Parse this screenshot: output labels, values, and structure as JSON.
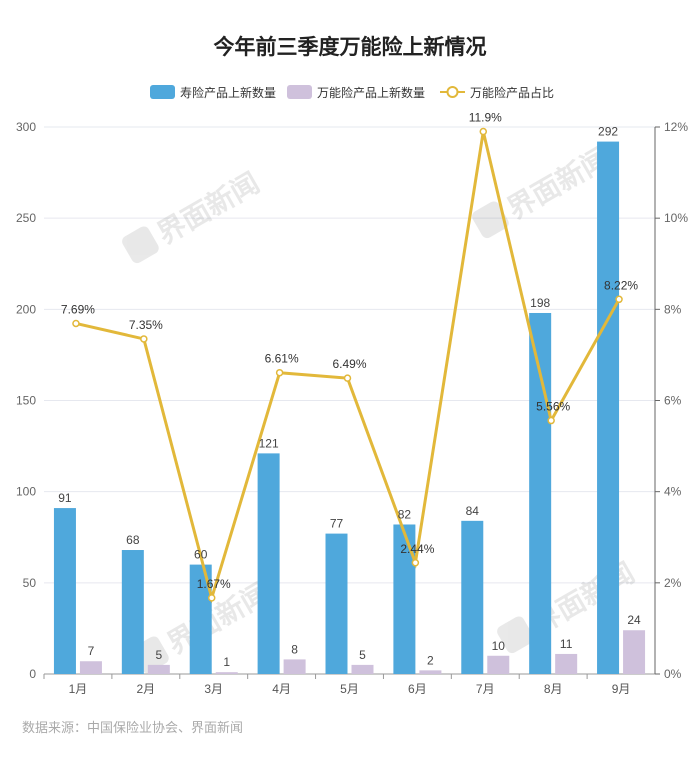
{
  "chart_data": {
    "type": "bar",
    "title": "今年前三季度万能险上新情况",
    "categories": [
      "1月",
      "2月",
      "3月",
      "4月",
      "5月",
      "6月",
      "7月",
      "8月",
      "9月"
    ],
    "series": [
      {
        "name": "寿险产品上新数量",
        "type": "bar",
        "axis": "left",
        "color": "#4fa8dc",
        "values": [
          91,
          68,
          60,
          121,
          77,
          82,
          84,
          198,
          292
        ]
      },
      {
        "name": "万能险产品上新数量",
        "type": "bar",
        "axis": "left",
        "color": "#cfc1dc",
        "values": [
          7,
          5,
          1,
          8,
          5,
          2,
          10,
          11,
          24
        ]
      },
      {
        "name": "万能险产品占比",
        "type": "line",
        "axis": "right",
        "color": "#e2b83a",
        "values": [
          7.69,
          7.35,
          1.67,
          6.61,
          6.49,
          2.44,
          11.9,
          5.56,
          8.22
        ],
        "labels": [
          "7.69%",
          "7.35%",
          "1.67%",
          "6.61%",
          "6.49%",
          "2.44%",
          "11.9%",
          "5.56%",
          "8.22%"
        ]
      }
    ],
    "ylim": [
      0,
      300
    ],
    "yticks": [
      "0",
      "50",
      "100",
      "150",
      "200",
      "250",
      "300"
    ],
    "y2lim": [
      0,
      12
    ],
    "y2ticks": [
      "0%",
      "2%",
      "4%",
      "6%",
      "8%",
      "10%",
      "12%"
    ],
    "grid": true,
    "legend": "top-center"
  },
  "source": "数据来源：中国保险业协会、界面新闻",
  "watermark": "界面新闻"
}
